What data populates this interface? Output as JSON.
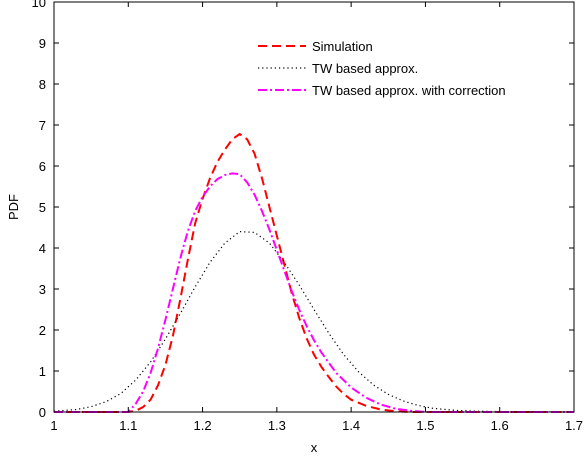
{
  "chart_data": {
    "type": "line",
    "xlabel": "x",
    "ylabel": "PDF",
    "xlim": [
      1,
      1.7
    ],
    "ylim": [
      0,
      10
    ],
    "xticks": [
      "1",
      "1.1",
      "1.2",
      "1.3",
      "1.4",
      "1.5",
      "1.6",
      "1.7"
    ],
    "yticks": [
      "0",
      "1",
      "2",
      "3",
      "4",
      "5",
      "6",
      "7",
      "8",
      "9",
      "10"
    ],
    "grid": false,
    "legend_position": "top-right",
    "series": [
      {
        "name": "Simulation",
        "color": "#ff0000",
        "style": "dashed",
        "x": [
          1.0,
          1.1,
          1.11,
          1.12,
          1.13,
          1.14,
          1.15,
          1.16,
          1.17,
          1.18,
          1.19,
          1.2,
          1.21,
          1.22,
          1.23,
          1.24,
          1.25,
          1.26,
          1.27,
          1.28,
          1.29,
          1.3,
          1.31,
          1.32,
          1.33,
          1.34,
          1.35,
          1.36,
          1.37,
          1.38,
          1.39,
          1.4,
          1.42,
          1.44,
          1.46,
          1.48,
          1.5,
          1.7
        ],
        "y": [
          0.0,
          0.0,
          0.03,
          0.12,
          0.3,
          0.65,
          1.15,
          1.85,
          2.75,
          3.7,
          4.6,
          5.2,
          5.7,
          6.1,
          6.4,
          6.65,
          6.78,
          6.65,
          6.3,
          5.7,
          5.0,
          4.3,
          3.6,
          2.9,
          2.3,
          1.8,
          1.4,
          1.1,
          0.85,
          0.62,
          0.44,
          0.3,
          0.15,
          0.06,
          0.02,
          0.0,
          0.0,
          0.0
        ]
      },
      {
        "name": "TW based approx.",
        "color": "#000000",
        "style": "dotted",
        "x": [
          1.0,
          1.03,
          1.05,
          1.07,
          1.09,
          1.11,
          1.13,
          1.15,
          1.17,
          1.19,
          1.21,
          1.23,
          1.25,
          1.27,
          1.29,
          1.31,
          1.33,
          1.35,
          1.37,
          1.39,
          1.41,
          1.43,
          1.45,
          1.47,
          1.49,
          1.51,
          1.54,
          1.57,
          1.6,
          1.7
        ],
        "y": [
          0.02,
          0.06,
          0.13,
          0.25,
          0.45,
          0.78,
          1.22,
          1.78,
          2.4,
          3.05,
          3.65,
          4.12,
          4.4,
          4.38,
          4.12,
          3.65,
          3.1,
          2.5,
          1.92,
          1.4,
          0.98,
          0.66,
          0.43,
          0.27,
          0.16,
          0.09,
          0.04,
          0.02,
          0.01,
          0.0
        ]
      },
      {
        "name": "TW based approx. with correction",
        "color": "#ff00ff",
        "style": "dashdot",
        "x": [
          1.0,
          1.1,
          1.11,
          1.12,
          1.13,
          1.14,
          1.15,
          1.16,
          1.17,
          1.18,
          1.19,
          1.2,
          1.21,
          1.22,
          1.23,
          1.24,
          1.25,
          1.26,
          1.27,
          1.28,
          1.29,
          1.3,
          1.31,
          1.32,
          1.33,
          1.34,
          1.35,
          1.36,
          1.38,
          1.4,
          1.42,
          1.44,
          1.46,
          1.48,
          1.5,
          1.7
        ],
        "y": [
          0.0,
          0.0,
          0.2,
          0.5,
          0.95,
          1.55,
          2.25,
          3.0,
          3.75,
          4.4,
          4.9,
          5.25,
          5.5,
          5.68,
          5.78,
          5.82,
          5.8,
          5.6,
          5.3,
          4.9,
          4.45,
          3.95,
          3.45,
          2.95,
          2.5,
          2.1,
          1.75,
          1.45,
          0.95,
          0.6,
          0.35,
          0.18,
          0.08,
          0.03,
          0.0,
          0.0
        ]
      }
    ]
  }
}
